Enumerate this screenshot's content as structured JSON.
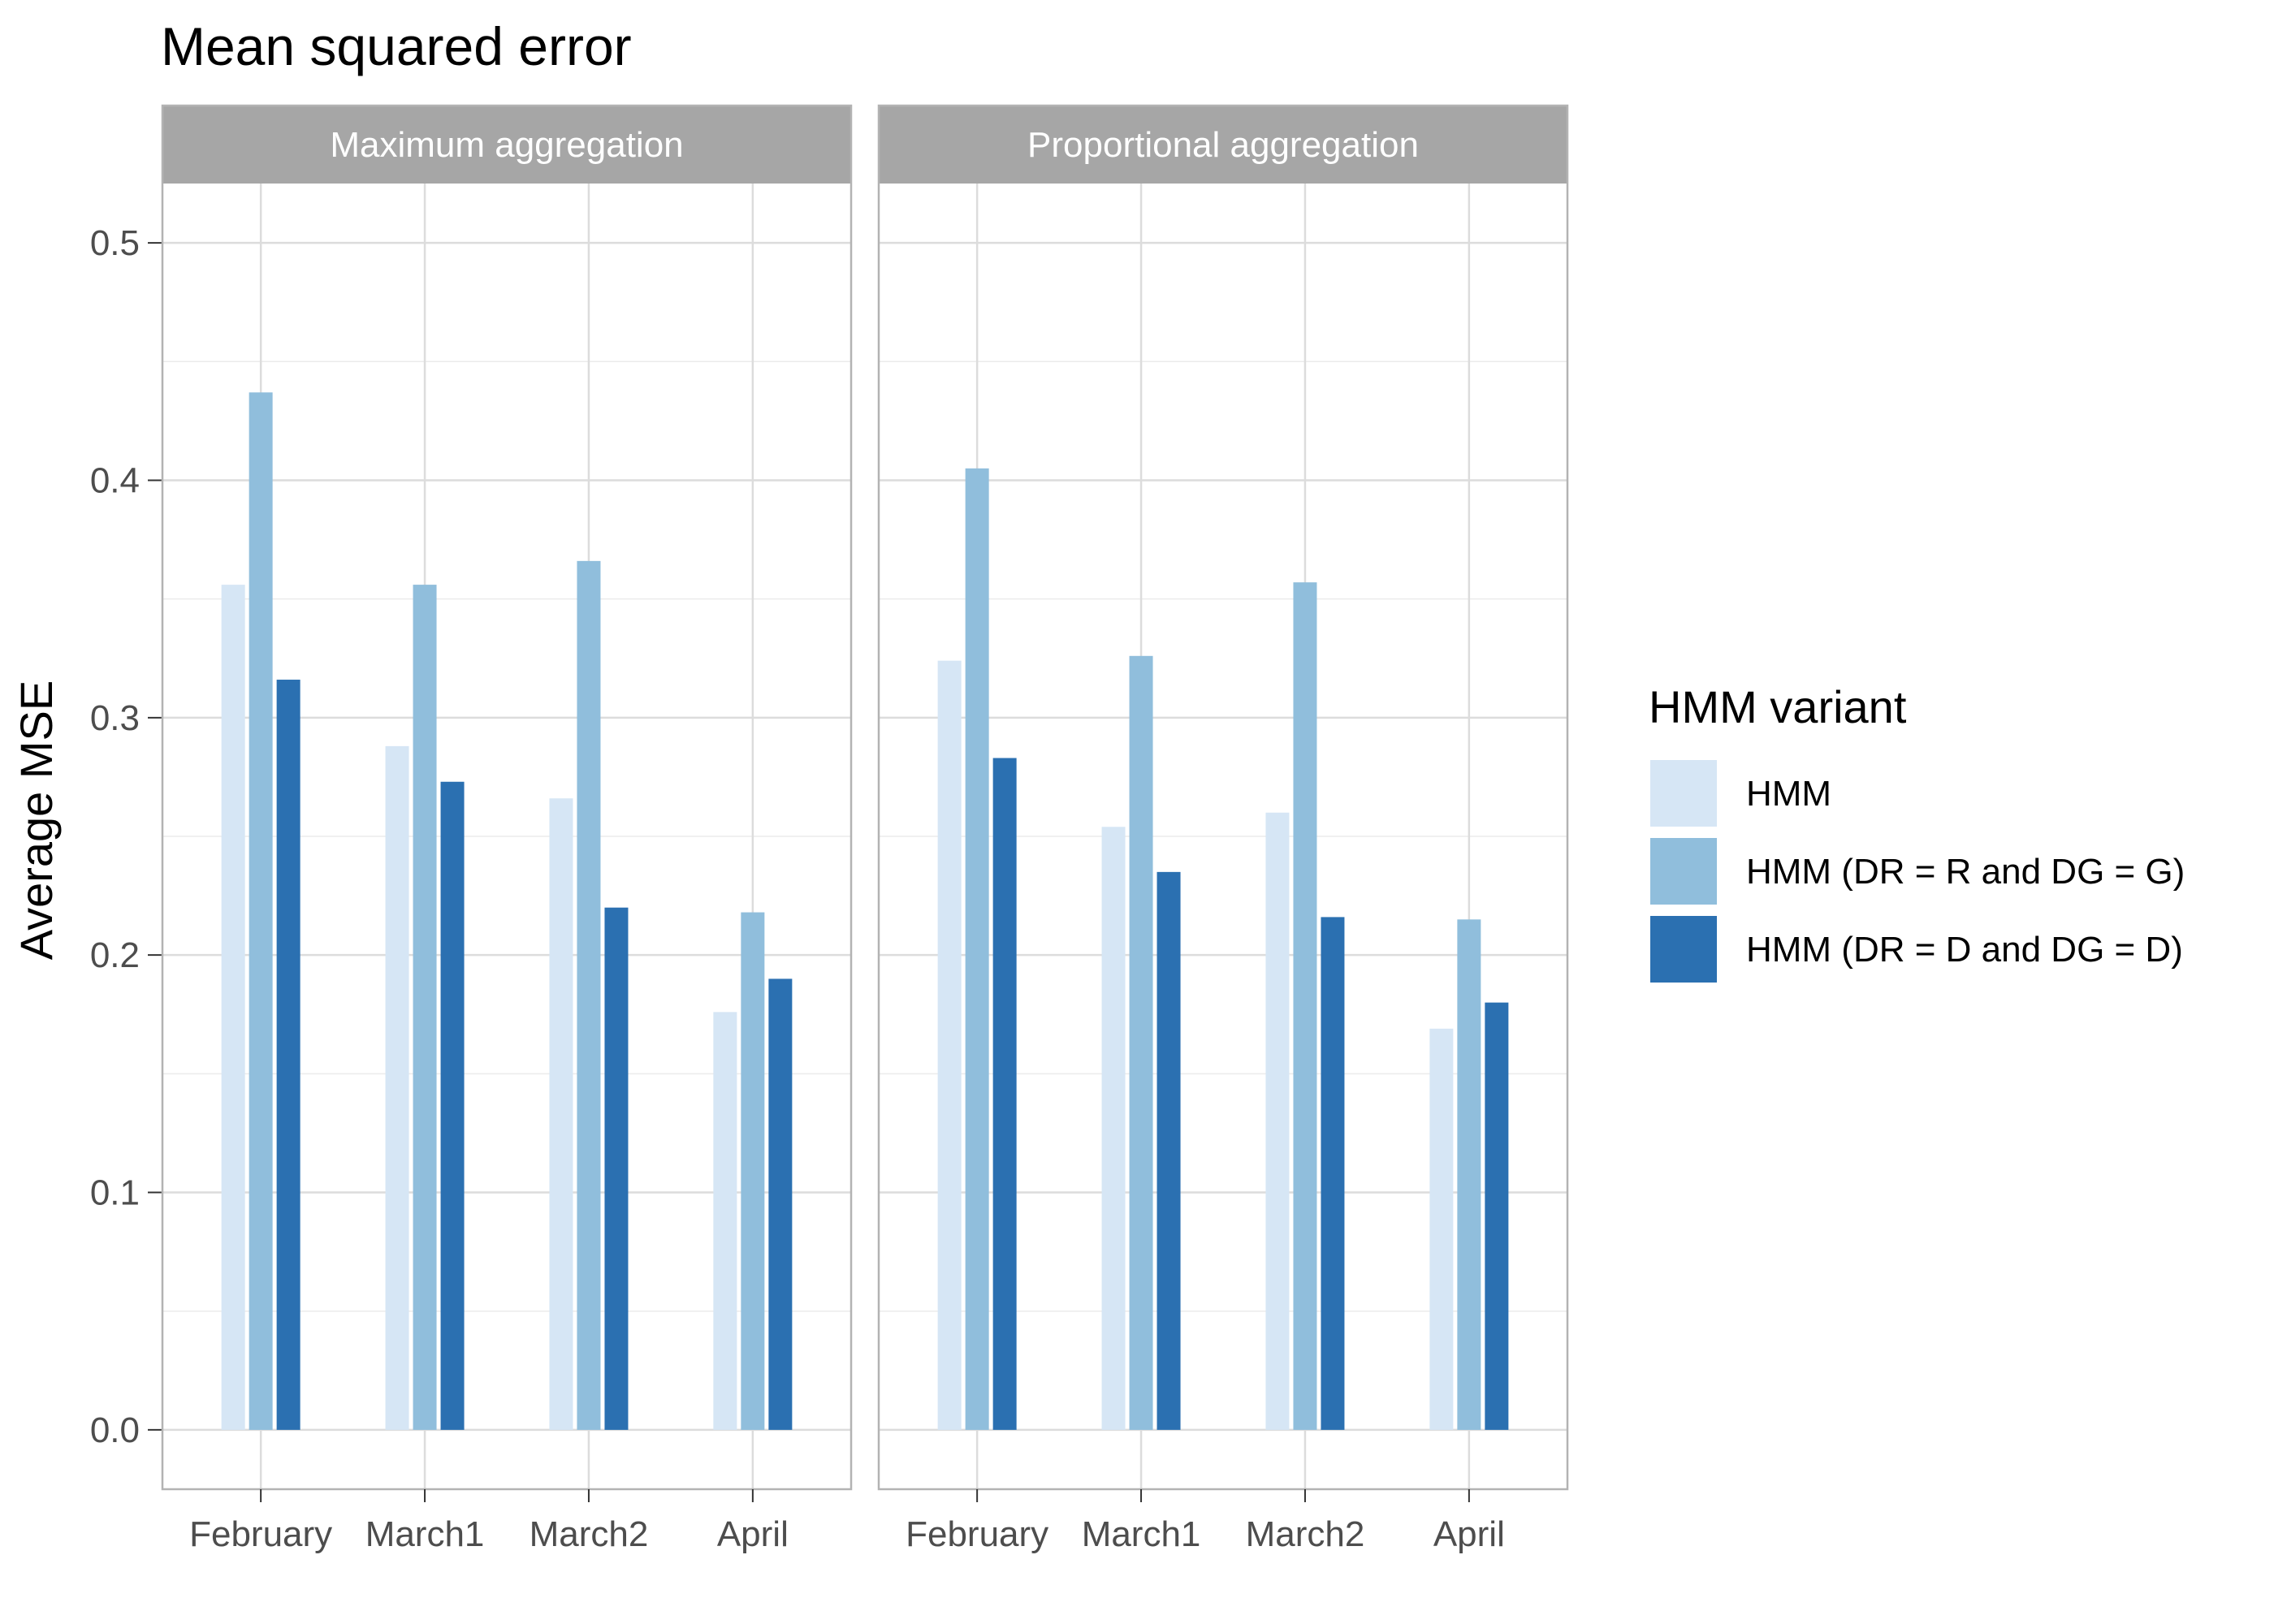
{
  "chart_data": {
    "type": "bar",
    "title": "Mean squared error",
    "ylabel": "Average MSE",
    "xlabel": "",
    "ylim": [
      -0.025,
      0.525
    ],
    "yticks": [
      0.0,
      0.1,
      0.2,
      0.3,
      0.4,
      0.5
    ],
    "ytick_labels": [
      "0.0",
      "0.1",
      "0.2",
      "0.3",
      "0.4",
      "0.5"
    ],
    "grid": true,
    "categories": [
      "February",
      "March1",
      "March2",
      "April"
    ],
    "legend": {
      "title": "HMM variant",
      "position": "right",
      "entries": [
        "HMM",
        "HMM (DR = R and DG = G)",
        "HMM (DR = D and DG = D)"
      ]
    },
    "colors": [
      "#d6e6f5",
      "#90bedc",
      "#2b70b1"
    ],
    "panels": [
      {
        "name": "Maximum aggregation",
        "series": [
          {
            "name": "HMM",
            "values": [
              0.356,
              0.288,
              0.266,
              0.176
            ]
          },
          {
            "name": "HMM (DR = R and DG = G)",
            "values": [
              0.437,
              0.356,
              0.366,
              0.218
            ]
          },
          {
            "name": "HMM (DR = D and DG = D)",
            "values": [
              0.316,
              0.273,
              0.22,
              0.19
            ]
          }
        ]
      },
      {
        "name": "Proportional aggregation",
        "series": [
          {
            "name": "HMM",
            "values": [
              0.324,
              0.254,
              0.26,
              0.169
            ]
          },
          {
            "name": "HMM (DR = R and DG = G)",
            "values": [
              0.405,
              0.326,
              0.357,
              0.215
            ]
          },
          {
            "name": "HMM (DR = D and DG = D)",
            "values": [
              0.283,
              0.235,
              0.216,
              0.18
            ]
          }
        ]
      }
    ]
  }
}
